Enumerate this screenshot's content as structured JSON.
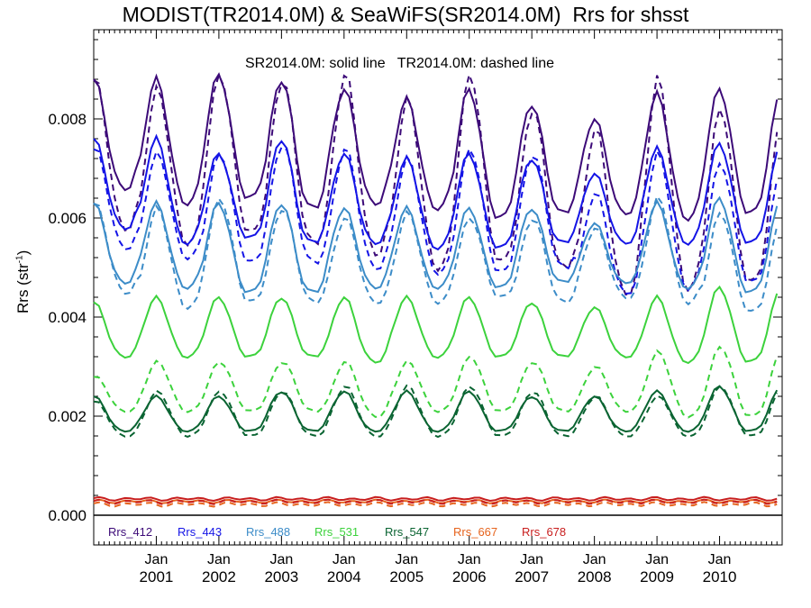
{
  "title": "MODIST(TR2014.0M) & SeaWiFS(SR2014.0M)  Rrs for shsst",
  "subtitle": "SR2014.0M: solid line   TR2014.0M: dashed line",
  "ylabel_main": "Rrs (str",
  "ylabel_sup": "-1",
  "ylabel_close": ")",
  "chart_data": {
    "type": "line",
    "title": "MODIST(TR2014.0M) & SeaWiFS(SR2014.0M)  Rrs for shsst",
    "subtitle": "SR2014.0M: solid line   TR2014.0M: dashed line",
    "xlabel": "",
    "ylabel": "Rrs (str-1)",
    "xlim": [
      "2000-01",
      "2011-01"
    ],
    "ylim": [
      -0.0006,
      0.0098
    ],
    "yticks": [
      0.0,
      0.002,
      0.004,
      0.006,
      0.008
    ],
    "ytick_labels": [
      "0.000",
      "0.002",
      "0.004",
      "0.006",
      "0.008"
    ],
    "xtick_labels": [
      {
        "date": "2001-01",
        "month": "Jan",
        "year": "2001"
      },
      {
        "date": "2002-01",
        "month": "Jan",
        "year": "2002"
      },
      {
        "date": "2003-01",
        "month": "Jan",
        "year": "2003"
      },
      {
        "date": "2004-01",
        "month": "Jan",
        "year": "2004"
      },
      {
        "date": "2005-01",
        "month": "Jan",
        "year": "2005"
      },
      {
        "date": "2006-01",
        "month": "Jan",
        "year": "2006"
      },
      {
        "date": "2007-01",
        "month": "Jan",
        "year": "2007"
      },
      {
        "date": "2008-01",
        "month": "Jan",
        "year": "2008"
      },
      {
        "date": "2009-01",
        "month": "Jan",
        "year": "2009"
      },
      {
        "date": "2010-01",
        "month": "Jan",
        "year": "2010"
      }
    ],
    "time_start": "2000-01",
    "time_step": "monthly",
    "grid": false,
    "zero_line": true,
    "legend_position": "bottom",
    "series": [
      {
        "name": "Rrs_412",
        "color": "#3c0a78",
        "solid_peaks": [
          0.0088,
          0.0088,
          0.0089,
          0.0088,
          0.0086,
          0.0084,
          0.0086,
          0.0083,
          0.008,
          0.0085,
          0.0086
        ],
        "solid_troughs": [
          0.0066,
          0.0063,
          0.0064,
          0.0062,
          0.0063,
          0.0062,
          0.006,
          0.0061,
          0.0061,
          0.006,
          0.0061
        ],
        "dashed_peaks": [
          0.0088,
          0.0086,
          0.0089,
          0.0088,
          0.0089,
          0.0084,
          0.0089,
          0.0082,
          0.0078,
          0.0088,
          0.0082
        ],
        "dashed_troughs": [
          0.0058,
          0.0055,
          0.0057,
          0.0055,
          0.0053,
          0.005,
          0.0051,
          0.005,
          0.0045,
          0.0046,
          0.0047
        ]
      },
      {
        "name": "Rrs_443",
        "color": "#1414e6",
        "solid_peaks": [
          0.0076,
          0.0076,
          0.0073,
          0.0076,
          0.0073,
          0.0072,
          0.0073,
          0.0072,
          0.0069,
          0.0074,
          0.0075
        ],
        "solid_troughs": [
          0.0058,
          0.0055,
          0.0056,
          0.0055,
          0.0055,
          0.0054,
          0.0054,
          0.0055,
          0.0055,
          0.0055,
          0.0055
        ],
        "dashed_peaks": [
          0.0074,
          0.0073,
          0.0073,
          0.0075,
          0.0074,
          0.0072,
          0.0074,
          0.0073,
          0.0065,
          0.0073,
          0.0071
        ],
        "dashed_troughs": [
          0.0054,
          0.0052,
          0.0051,
          0.0051,
          0.005,
          0.0049,
          0.0049,
          0.005,
          0.0045,
          0.0046,
          0.0047
        ]
      },
      {
        "name": "Rrs_488",
        "color": "#3c8cc8",
        "solid_peaks": [
          0.0063,
          0.0063,
          0.0063,
          0.0063,
          0.0062,
          0.0062,
          0.0062,
          0.0062,
          0.0059,
          0.0063,
          0.0064
        ],
        "solid_troughs": [
          0.0047,
          0.0046,
          0.0045,
          0.0045,
          0.0046,
          0.0046,
          0.0046,
          0.0047,
          0.0047,
          0.0046,
          0.0045
        ],
        "dashed_peaks": [
          0.0063,
          0.0062,
          0.0064,
          0.0062,
          0.006,
          0.0061,
          0.006,
          0.006,
          0.0058,
          0.0064,
          0.0061
        ],
        "dashed_troughs": [
          0.0045,
          0.0042,
          0.0043,
          0.0043,
          0.0043,
          0.0043,
          0.0044,
          0.0043,
          0.0044,
          0.0043,
          0.0041
        ]
      },
      {
        "name": "Rrs_531",
        "color": "#3cd23c",
        "solid_peaks": [
          0.0043,
          0.0044,
          0.0044,
          0.0044,
          0.0044,
          0.0044,
          0.0044,
          0.0043,
          0.0042,
          0.0044,
          0.0046
        ],
        "solid_troughs": [
          0.0032,
          0.0032,
          0.0032,
          0.0032,
          0.0031,
          0.0032,
          0.0032,
          0.0032,
          0.0032,
          0.0031,
          0.0031
        ],
        "dashed_peaks": [
          0.0028,
          0.0031,
          0.0031,
          0.0031,
          0.0031,
          0.0031,
          0.0032,
          0.0031,
          0.003,
          0.0033,
          0.0034
        ],
        "dashed_troughs": [
          0.0021,
          0.0021,
          0.0021,
          0.0021,
          0.002,
          0.0021,
          0.0021,
          0.0021,
          0.0021,
          0.002,
          0.002
        ]
      },
      {
        "name": "Rrs_547",
        "color": "#0a6432",
        "solid_peaks": [
          0.0024,
          0.0024,
          0.0024,
          0.0025,
          0.0025,
          0.0025,
          0.0025,
          0.0024,
          0.0024,
          0.0025,
          0.0026
        ],
        "solid_troughs": [
          0.0017,
          0.0017,
          0.0017,
          0.0017,
          0.0017,
          0.0017,
          0.0017,
          0.0017,
          0.0017,
          0.0017,
          0.0017
        ],
        "dashed_peaks": [
          0.0023,
          0.0025,
          0.0025,
          0.0025,
          0.0026,
          0.0026,
          0.0026,
          0.0025,
          0.0024,
          0.0024,
          0.0026
        ],
        "dashed_troughs": [
          0.0016,
          0.0016,
          0.0016,
          0.0016,
          0.0016,
          0.0016,
          0.0016,
          0.0016,
          0.0016,
          0.0016,
          0.0016
        ]
      },
      {
        "name": "Rrs_667",
        "color": "#e6641e",
        "solid_level": 0.00028,
        "dashed_level": 0.00022
      },
      {
        "name": "Rrs_678",
        "color": "#c81e1e",
        "solid_level": 0.00033,
        "dashed_level": 0.00027
      }
    ]
  }
}
